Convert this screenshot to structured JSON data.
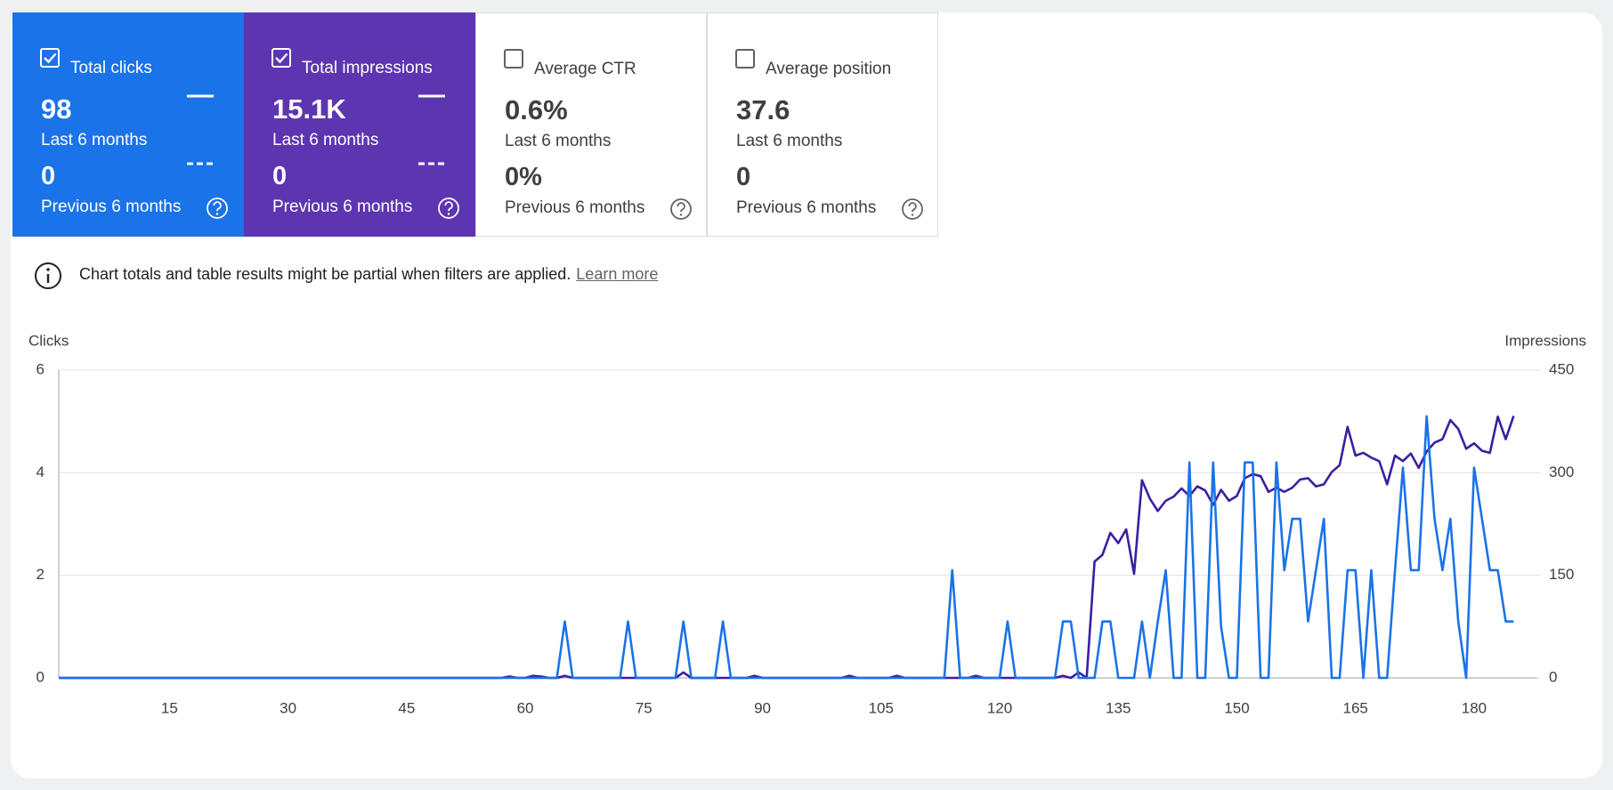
{
  "metrics": [
    {
      "label": "Total clicks",
      "value": "98",
      "period": "Last 6 months",
      "previous_value": "0",
      "previous_period": "Previous 6 months",
      "selected": true,
      "color": "#1a73e8"
    },
    {
      "label": "Total impressions",
      "value": "15.1K",
      "period": "Last 6 months",
      "previous_value": "0",
      "previous_period": "Previous 6 months",
      "selected": true,
      "color": "#5e35b1"
    },
    {
      "label": "Average CTR",
      "value": "0.6%",
      "period": "Last 6 months",
      "previous_value": "0%",
      "previous_period": "Previous 6 months",
      "selected": false
    },
    {
      "label": "Average position",
      "value": "37.6",
      "period": "Last 6 months",
      "previous_value": "0",
      "previous_period": "Previous 6 months",
      "selected": false
    }
  ],
  "notice": {
    "text": "Chart totals and table results might be partial when filters are applied.",
    "link": "Learn more"
  },
  "chart_data": {
    "type": "line",
    "y_label": "Clicks",
    "y2_label": "Impressions",
    "x": [
      1,
      2,
      3,
      4,
      5,
      6,
      7,
      8,
      9,
      10,
      11,
      12,
      13,
      14,
      15,
      16,
      17,
      18,
      19,
      20,
      21,
      22,
      23,
      24,
      25,
      26,
      27,
      28,
      29,
      30,
      31,
      32,
      33,
      34,
      35,
      36,
      37,
      38,
      39,
      40,
      41,
      42,
      43,
      44,
      45,
      46,
      47,
      48,
      49,
      50,
      51,
      52,
      53,
      54,
      55,
      56,
      57,
      58,
      59,
      60,
      61,
      62,
      63,
      64,
      65,
      66,
      67,
      68,
      69,
      70,
      71,
      72,
      73,
      74,
      75,
      76,
      77,
      78,
      79,
      80,
      81,
      82,
      83,
      84,
      85,
      86,
      87,
      88,
      89,
      90,
      91,
      92,
      93,
      94,
      95,
      96,
      97,
      98,
      99,
      100,
      101,
      102,
      103,
      104,
      105,
      106,
      107,
      108,
      109,
      110,
      111,
      112,
      113,
      114,
      115,
      116,
      117,
      118,
      119,
      120,
      121,
      122,
      123,
      124,
      125,
      126,
      127,
      128,
      129,
      130,
      131,
      132,
      133,
      134,
      135,
      136,
      137,
      138,
      139,
      140,
      141,
      142,
      143,
      144,
      145,
      146,
      147,
      148,
      149,
      150,
      151,
      152,
      153,
      154,
      155,
      156,
      157,
      158,
      159,
      160,
      161,
      162,
      163,
      164,
      165,
      166,
      167,
      168,
      169,
      170,
      171,
      172,
      173,
      174,
      175,
      176,
      177,
      178,
      179,
      180,
      181,
      182,
      183,
      184,
      185
    ],
    "series": [
      {
        "name": "Clicks",
        "color": "#1a73e8",
        "axis": "y",
        "values": [
          0,
          0,
          0,
          0,
          0,
          0,
          0,
          0,
          0,
          0,
          0,
          0,
          0,
          0,
          0,
          0,
          0,
          0,
          0,
          0,
          0,
          0,
          0,
          0,
          0,
          0,
          0,
          0,
          0,
          0,
          0,
          0,
          0,
          0,
          0,
          0,
          0,
          0,
          0,
          0,
          0,
          0,
          0,
          0,
          0,
          0,
          0,
          0,
          0,
          0,
          0,
          0,
          0,
          0,
          0,
          0,
          0,
          0,
          0,
          0,
          0,
          0,
          0,
          0,
          1.1,
          0,
          0,
          0,
          0,
          0,
          0,
          0,
          1.1,
          0,
          0,
          0,
          0,
          0,
          0,
          1.1,
          0,
          0,
          0,
          0,
          1.1,
          0,
          0,
          0,
          0,
          0,
          0,
          0,
          0,
          0,
          0,
          0,
          0,
          0,
          0,
          0,
          0,
          0,
          0,
          0,
          0,
          0,
          0,
          0,
          0,
          0,
          0,
          0,
          0,
          2.1,
          0,
          0,
          0,
          0,
          0,
          0,
          1.1,
          0,
          0,
          0,
          0,
          0,
          0,
          1.1,
          1.1,
          0,
          0,
          0,
          1.1,
          1.1,
          0,
          0,
          0,
          1.1,
          0,
          1.1,
          2.1,
          0,
          0,
          4.2,
          0,
          0,
          4.2,
          1,
          0,
          0,
          4.2,
          4.2,
          0,
          0,
          4.2,
          2.1,
          3.1,
          3.1,
          1.1,
          2.1,
          3.1,
          0,
          0,
          2.1,
          2.1,
          0,
          2.1,
          0,
          0,
          2.1,
          4.1,
          2.1,
          2.1,
          5.1,
          3.1,
          2.1,
          3.1,
          1.1,
          0,
          4.1,
          3.1,
          2.1,
          2.1,
          1.1,
          1.1
        ]
      },
      {
        "name": "Impressions",
        "color": "#3b1fa0",
        "axis": "y2",
        "values": [
          0,
          0,
          0,
          0,
          0,
          0,
          0,
          0,
          0,
          0,
          0,
          0,
          0,
          0,
          0,
          0,
          0,
          0,
          0,
          0,
          0,
          0,
          0,
          0,
          0,
          0,
          0,
          0,
          0,
          0,
          0,
          0,
          0,
          0,
          0,
          0,
          0,
          0,
          0,
          0,
          0,
          0,
          0,
          0,
          0,
          0,
          0,
          0,
          0,
          0,
          0,
          0,
          0,
          0,
          0,
          0,
          0,
          2,
          0,
          0,
          3,
          2,
          0,
          0,
          3,
          0,
          0,
          0,
          0,
          0,
          0,
          0,
          0,
          0,
          0,
          0,
          0,
          0,
          0,
          8,
          0,
          0,
          0,
          0,
          0,
          0,
          0,
          0,
          3,
          0,
          0,
          0,
          0,
          0,
          0,
          0,
          0,
          0,
          0,
          0,
          3,
          0,
          0,
          0,
          0,
          0,
          3,
          0,
          0,
          0,
          0,
          0,
          0,
          0,
          0,
          0,
          3,
          0,
          0,
          0,
          0,
          0,
          0,
          0,
          0,
          0,
          0,
          3,
          0,
          8,
          0,
          170,
          180,
          212,
          197,
          217,
          152,
          289,
          262,
          244,
          259,
          265,
          277,
          266,
          280,
          274,
          253,
          275,
          259,
          266,
          292,
          298,
          295,
          272,
          278,
          272,
          278,
          290,
          292,
          280,
          283,
          301,
          311,
          367,
          325,
          329,
          322,
          317,
          283,
          325,
          317,
          328,
          307,
          331,
          344,
          349,
          377,
          364,
          335,
          343,
          332,
          329,
          382,
          349,
          383
        ]
      }
    ],
    "xlim": [
      1,
      188
    ],
    "xticks": [
      15,
      30,
      45,
      60,
      75,
      90,
      105,
      120,
      135,
      150,
      165,
      180
    ],
    "ylim": [
      0,
      6
    ],
    "yticks": [
      0,
      2,
      4,
      6
    ],
    "y2lim": [
      0,
      450
    ],
    "y2ticks": [
      0,
      150,
      300,
      450
    ],
    "grid": true
  }
}
